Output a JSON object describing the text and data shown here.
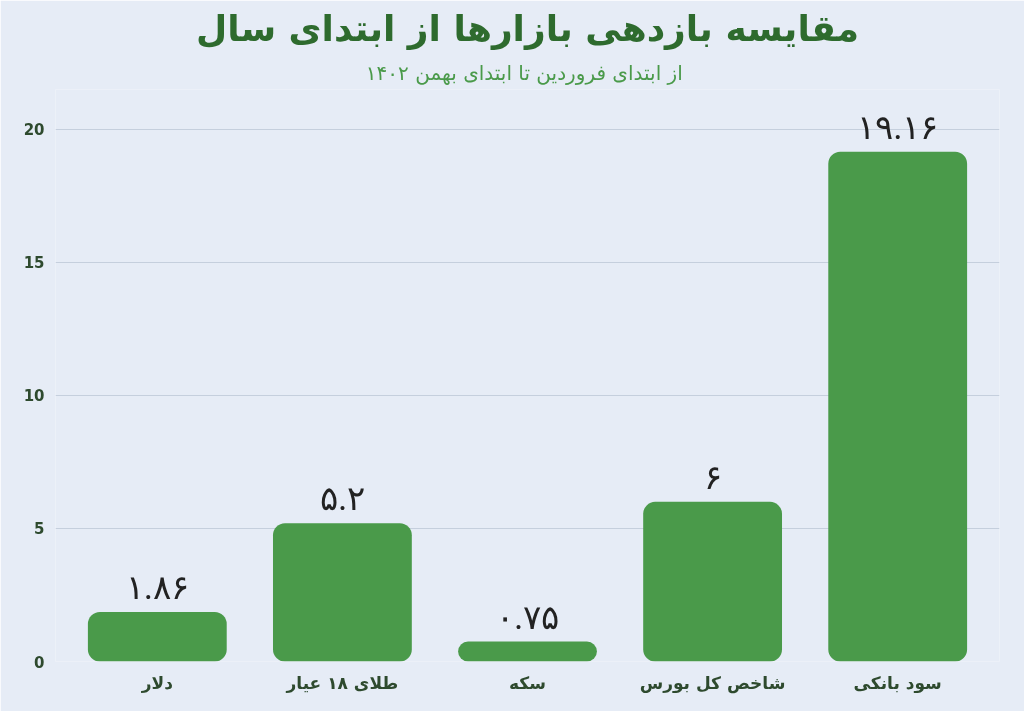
{
  "chart_data": {
    "type": "bar",
    "title": "مقایسه بازدهی بازارها از ابتدای سال",
    "subtitle": "از ابتدای فروردین تا  ابتدای بهمن ۱۴۰۲",
    "categories": [
      "دلار",
      "طلای ۱۸ عیار",
      "سکه",
      "شاخص کل بورس",
      "سود بانکی"
    ],
    "values": [
      1.86,
      5.2,
      0.75,
      6,
      19.16
    ],
    "value_labels": [
      "۱.۸۶",
      "۵.۲",
      "۰.۷۵",
      "۶",
      "۱۹.۱۶"
    ],
    "color": "#4a9a4a",
    "ylim": [
      0,
      21.5
    ],
    "yticks": [
      0,
      5,
      10,
      15,
      20
    ],
    "grid": "y"
  }
}
